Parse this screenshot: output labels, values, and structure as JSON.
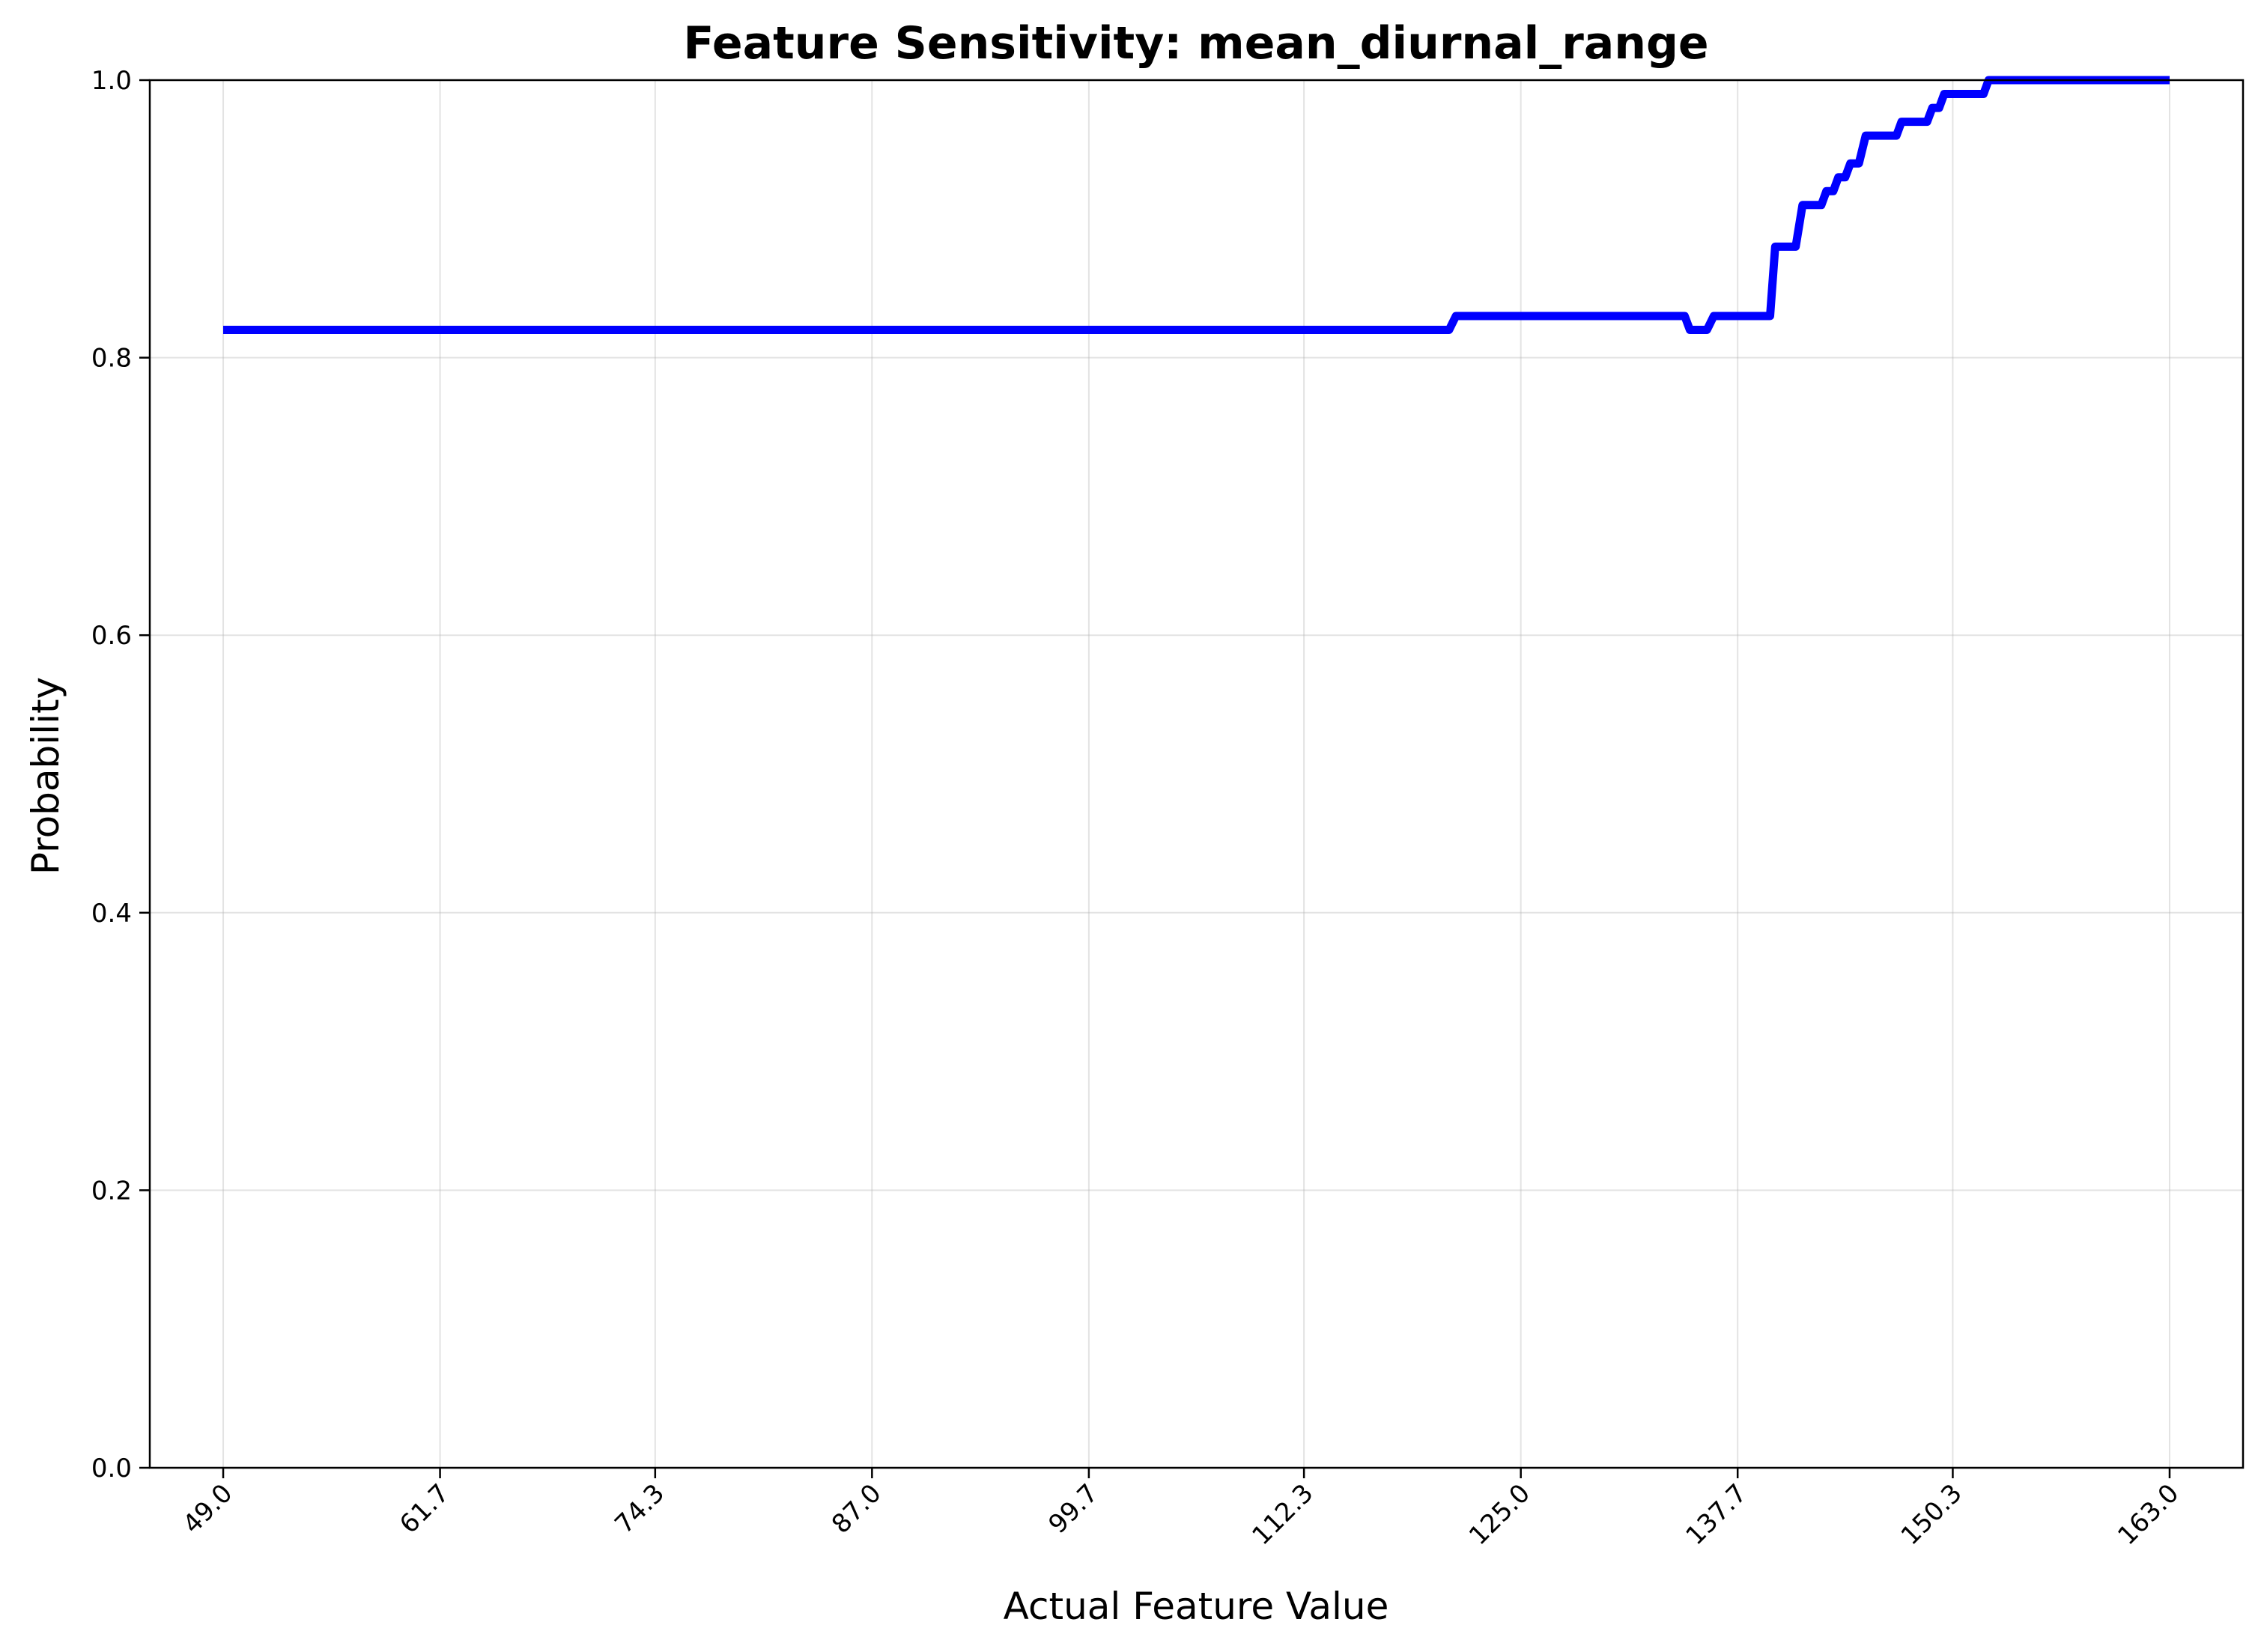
{
  "chart_data": {
    "type": "line",
    "title": "Feature Sensitivity: mean_diurnal_range",
    "xlabel": "Actual Feature Value",
    "ylabel": "Probability",
    "xlim": [
      44.7,
      167.3
    ],
    "ylim": [
      0.0,
      1.0
    ],
    "grid": true,
    "x_ticks": [
      "49.0",
      "61.7",
      "74.3",
      "87.0",
      "99.7",
      "112.3",
      "125.0",
      "137.7",
      "150.3",
      "163.0"
    ],
    "y_ticks": [
      "0.0",
      "0.2",
      "0.4",
      "0.6",
      "0.8",
      "1.0"
    ],
    "series": [
      {
        "color": "#0000ff",
        "x": [
          49.0,
          120.8,
          121.2,
          134.6,
          134.9,
          135.9,
          136.3,
          139.6,
          139.9,
          141.1,
          141.5,
          142.6,
          142.9,
          143.3,
          143.6,
          144.0,
          144.3,
          144.8,
          145.2,
          147.0,
          147.3,
          148.8,
          149.1,
          149.5,
          149.8,
          150.2,
          150.6,
          152.1,
          152.4,
          163.0
        ],
        "y": [
          0.82,
          0.82,
          0.83,
          0.83,
          0.82,
          0.82,
          0.83,
          0.83,
          0.88,
          0.88,
          0.91,
          0.91,
          0.92,
          0.92,
          0.93,
          0.93,
          0.94,
          0.94,
          0.96,
          0.96,
          0.97,
          0.97,
          0.98,
          0.98,
          0.99,
          0.99,
          0.99,
          0.99,
          1.0,
          1.0
        ]
      }
    ]
  }
}
